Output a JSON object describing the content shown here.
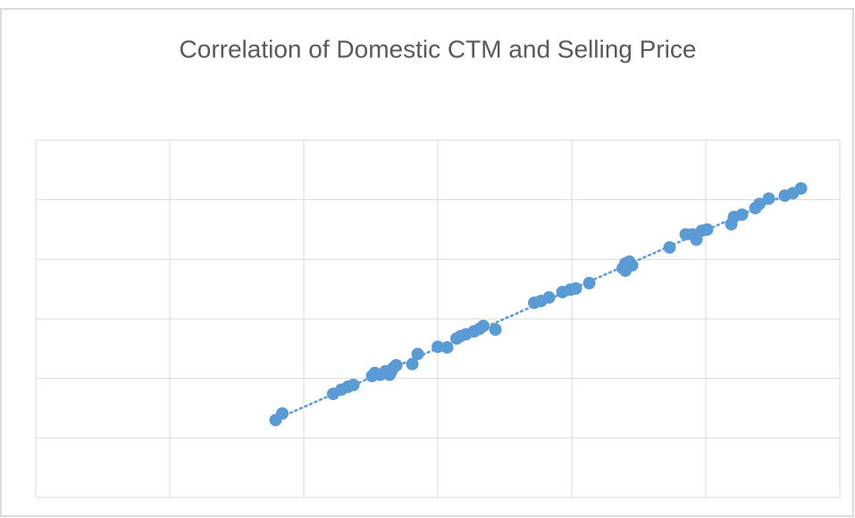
{
  "chart_data": {
    "type": "scatter",
    "title": "Correlation of Domestic CTM and Selling Price",
    "color": "#5b9bd5",
    "grid": true,
    "trendline": "linear",
    "xlim": [
      0,
      6
    ],
    "ylim": [
      0,
      6
    ],
    "xticks": [
      0,
      1,
      2,
      3,
      4,
      5,
      6
    ],
    "yticks": [
      0,
      1,
      2,
      3,
      4,
      5,
      6
    ],
    "x": [
      1.79,
      1.84,
      2.22,
      2.28,
      2.33,
      2.37,
      2.51,
      2.53,
      2.57,
      2.61,
      2.64,
      2.67,
      2.69,
      2.65,
      2.81,
      2.85,
      3.0,
      3.07,
      3.14,
      3.17,
      3.21,
      3.27,
      3.31,
      3.34,
      3.43,
      3.72,
      3.77,
      3.83,
      3.93,
      3.99,
      4.03,
      4.13,
      4.38,
      4.4,
      4.43,
      4.45,
      4.4,
      4.73,
      4.85,
      4.9,
      4.93,
      4.97,
      5.01,
      5.19,
      5.21,
      5.27,
      5.37,
      5.4,
      5.47,
      5.59,
      5.65,
      5.71
    ],
    "values": [
      1.3,
      1.41,
      1.74,
      1.81,
      1.86,
      1.89,
      2.04,
      2.09,
      2.06,
      2.12,
      2.06,
      2.18,
      2.22,
      2.1,
      2.24,
      2.41,
      2.53,
      2.52,
      2.67,
      2.71,
      2.74,
      2.79,
      2.83,
      2.88,
      2.82,
      3.27,
      3.3,
      3.36,
      3.45,
      3.49,
      3.51,
      3.6,
      3.85,
      3.93,
      3.96,
      3.9,
      3.81,
      4.2,
      4.42,
      4.42,
      4.33,
      4.48,
      4.5,
      4.59,
      4.71,
      4.75,
      4.86,
      4.93,
      5.02,
      5.07,
      5.11,
      5.19
    ]
  }
}
